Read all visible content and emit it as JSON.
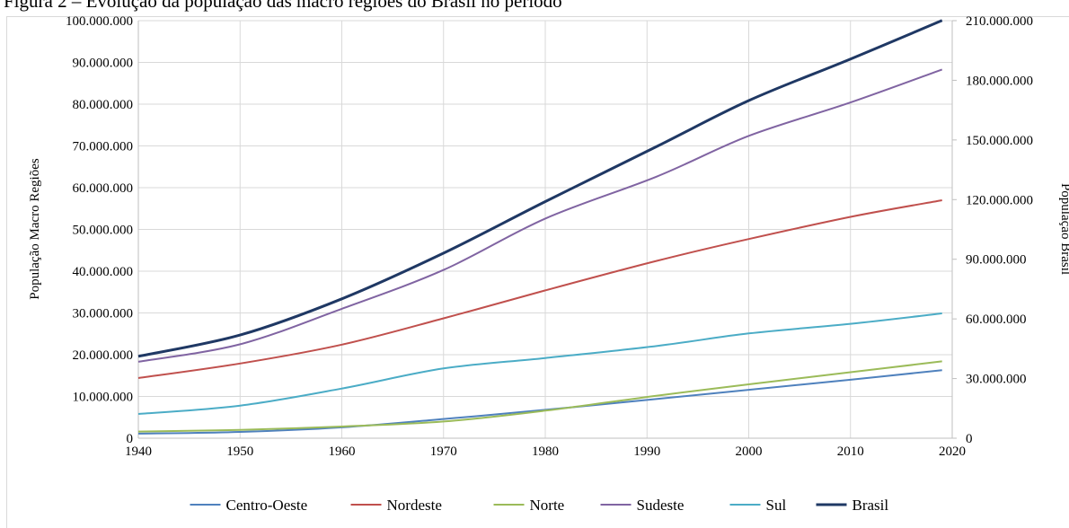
{
  "caption": "Figura 2 – Evolução da população das macro regiões do Brasil no período",
  "chart_data": {
    "type": "line",
    "title": "",
    "xlabel": "",
    "ylabel": "População Macro Regiões",
    "y2label": "População Brasil",
    "xlim": [
      1940,
      2020
    ],
    "ylim": [
      0,
      100000000
    ],
    "y2lim": [
      0,
      210000000
    ],
    "x_ticks": [
      "1940",
      "1950",
      "1960",
      "1970",
      "1980",
      "1990",
      "2000",
      "2010",
      "2020"
    ],
    "y_ticks": [
      "0",
      "10.000.000",
      "20.000.000",
      "30.000.000",
      "40.000.000",
      "50.000.000",
      "60.000.000",
      "70.000.000",
      "80.000.000",
      "90.000.000",
      "100.000.000"
    ],
    "y2_ticks": [
      "0",
      "30.000.000",
      "60.000.000",
      "90.000.000",
      "120.000.000",
      "150.000.000",
      "180.000.000",
      "210.000.000"
    ],
    "x": [
      1940,
      1950,
      1960,
      1970,
      1980,
      1991,
      2000,
      2010,
      2019
    ],
    "series": [
      {
        "name": "Centro-Oeste",
        "axis": "left",
        "color": "#4F81BD",
        "values": [
          1100000,
          1500000,
          2600000,
          4600000,
          6800000,
          9400000,
          11600000,
          14000000,
          16300000
        ]
      },
      {
        "name": "Nordeste",
        "axis": "left",
        "color": "#C0504D",
        "values": [
          14400000,
          17900000,
          22400000,
          28700000,
          35400000,
          42500000,
          47700000,
          53000000,
          57000000
        ]
      },
      {
        "name": "Norte",
        "axis": "left",
        "color": "#9BBB59",
        "values": [
          1600000,
          2000000,
          2800000,
          4000000,
          6600000,
          10200000,
          12900000,
          15800000,
          18400000
        ]
      },
      {
        "name": "Sudeste",
        "axis": "left",
        "color": "#8064A2",
        "values": [
          18300000,
          22500000,
          31000000,
          40300000,
          52600000,
          62700000,
          72400000,
          80400000,
          88300000
        ]
      },
      {
        "name": "Sul",
        "axis": "left",
        "color": "#4BACC6",
        "values": [
          5800000,
          7800000,
          11900000,
          16700000,
          19200000,
          22100000,
          25100000,
          27400000,
          29900000
        ]
      },
      {
        "name": "Brasil",
        "axis": "right",
        "color": "#1F3864",
        "values": [
          41200000,
          51900000,
          70100000,
          93100000,
          119000000,
          146800000,
          169800000,
          190700000,
          210100000
        ]
      }
    ],
    "legend_position": "bottom",
    "grid": true
  }
}
